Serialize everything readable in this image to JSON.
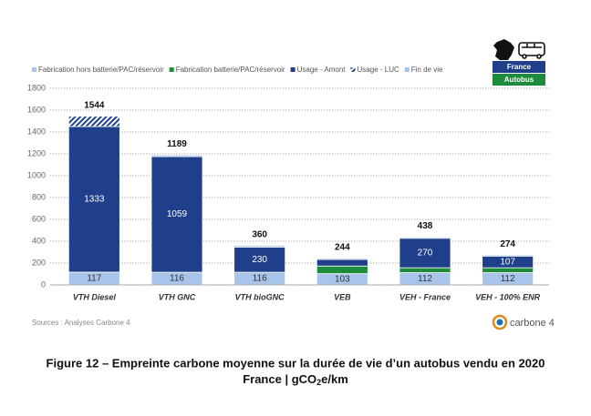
{
  "chart_data": {
    "type": "stacked-bar",
    "categories": [
      "VTH Diesel",
      "VTH GNC",
      "VTH bioGNC",
      "VEB",
      "VEH - France",
      "VEH - 100% ENR"
    ],
    "series": [
      {
        "name": "Fabrication hors batterie/PAC/réservoir",
        "color": "#a9c4eb",
        "values": [
          117,
          116,
          116,
          103,
          112,
          112
        ]
      },
      {
        "name": "Fabrication batterie/PAC/réservoir",
        "color": "#1e8a3c",
        "values": [
          0,
          0,
          0,
          70,
          45,
          45
        ]
      },
      {
        "name": "Usage - Amont",
        "color": "#1f3f8a",
        "values": [
          1333,
          1059,
          230,
          60,
          270,
          107
        ],
        "value_labels": [
          "1333",
          "1059",
          "230",
          null,
          "270",
          "107"
        ]
      },
      {
        "name": "Usage - LUC",
        "color": "#1f3f8a",
        "pattern": "hatch",
        "values": [
          94,
          0,
          0,
          0,
          0,
          0
        ]
      },
      {
        "name": "Fin de vie",
        "color": "#9fc5e8",
        "values": [
          0,
          14,
          14,
          11,
          11,
          10
        ]
      }
    ],
    "totals": [
      1544,
      1189,
      360,
      244,
      438,
      274
    ],
    "ylim": [
      0,
      1800
    ],
    "yticks": [
      0,
      200,
      400,
      600,
      800,
      1000,
      1200,
      1400,
      1600,
      1800
    ],
    "grid": true,
    "badges": [
      "France",
      "Autobus"
    ],
    "source": "Sources : Analyses Carbone 4",
    "logo": "carbone 4",
    "caption": {
      "line1": "Figure 12 – Empreinte carbone moyenne sur la durée de vie d’un autobus vendu en 2020",
      "line2": [
        "France | gCO",
        "2",
        "e/km"
      ]
    }
  }
}
